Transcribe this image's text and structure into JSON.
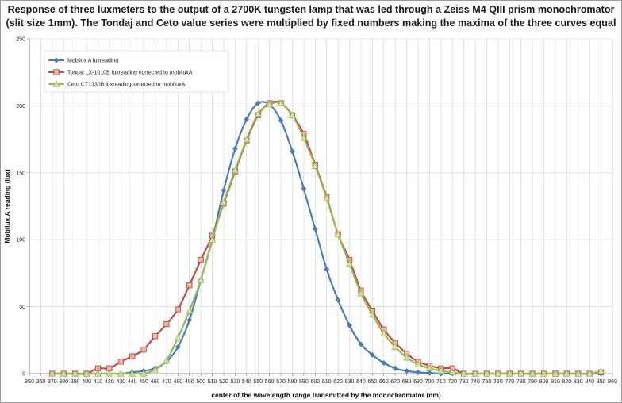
{
  "chart_data": {
    "type": "line",
    "title": "Response of three luxmeters to the output of a 2700K tungsten lamp that was led through a Zeiss M4 QIII prism monochromator (slit size 1mm). The Tondaj and Ceto value series were multiplied by fixed numbers making the maxima of the three curves equal",
    "xlabel": "center of the wavelength range transmitted by the monochromator (nm)",
    "ylabel": "Mobilux A reading (lux)",
    "xlim": [
      350,
      860
    ],
    "ylim": [
      0,
      250
    ],
    "x_ticks": [
      350,
      360,
      370,
      380,
      390,
      400,
      410,
      420,
      430,
      440,
      450,
      460,
      470,
      480,
      490,
      500,
      510,
      520,
      530,
      540,
      550,
      560,
      570,
      580,
      590,
      600,
      610,
      620,
      630,
      640,
      650,
      660,
      670,
      680,
      690,
      700,
      710,
      720,
      730,
      740,
      750,
      760,
      770,
      780,
      790,
      800,
      810,
      820,
      830,
      840,
      850,
      860
    ],
    "y_ticks": [
      0,
      50,
      100,
      150,
      200,
      250
    ],
    "grid": true,
    "legend_position": "top-left",
    "series": [
      {
        "name": "Mobilux A luxreading",
        "color": "#4a7ebb",
        "marker": "diamond",
        "x": [
          370,
          380,
          390,
          400,
          410,
          420,
          430,
          440,
          450,
          460,
          470,
          480,
          490,
          500,
          510,
          520,
          530,
          540,
          550,
          560,
          570,
          580,
          590,
          600,
          610,
          620,
          630,
          640,
          650,
          660,
          670,
          680,
          690,
          700,
          710,
          720,
          730,
          740,
          750,
          760,
          770,
          780,
          790,
          800,
          810,
          820,
          830,
          840,
          850
        ],
        "values": [
          0,
          0,
          0,
          0,
          0,
          0,
          0,
          1,
          2,
          4,
          9,
          20,
          40,
          70,
          100,
          137,
          168,
          190,
          202,
          201,
          189,
          166,
          138,
          108,
          78,
          55,
          36,
          22,
          14,
          8,
          4,
          2,
          1,
          0.5,
          0,
          0,
          0,
          0,
          0,
          0,
          0,
          0,
          0,
          0,
          0,
          0,
          0,
          0,
          0
        ]
      },
      {
        "name": "Tondaj LX-1010B luxreading corrected to mobiluxA",
        "color": "#be4b48",
        "marker": "square",
        "x": [
          370,
          380,
          390,
          400,
          410,
          420,
          430,
          440,
          450,
          460,
          470,
          480,
          490,
          500,
          510,
          520,
          530,
          540,
          550,
          560,
          570,
          580,
          590,
          600,
          610,
          620,
          630,
          640,
          650,
          660,
          670,
          680,
          690,
          700,
          710,
          720,
          730,
          740,
          750,
          760,
          770,
          780,
          790,
          800,
          810,
          820,
          830,
          840,
          850
        ],
        "values": [
          0,
          0,
          0,
          0,
          4,
          4,
          9,
          13,
          18,
          28,
          37,
          48,
          66,
          85,
          103,
          127,
          151,
          174,
          193,
          202,
          202,
          193,
          179,
          156,
          132,
          104,
          85,
          62,
          47,
          33,
          23,
          15,
          9,
          6,
          4,
          4,
          0,
          0,
          0,
          0,
          0,
          0,
          0,
          0,
          0,
          0,
          0,
          0,
          1
        ]
      },
      {
        "name": "Ceto CT1330B luxreadingcorrected to mobiluxA",
        "color": "#98b954",
        "marker": "triangle",
        "x": [
          370,
          380,
          390,
          400,
          410,
          420,
          430,
          440,
          450,
          460,
          470,
          480,
          490,
          500,
          510,
          520,
          530,
          540,
          550,
          560,
          570,
          580,
          590,
          600,
          610,
          620,
          630,
          640,
          650,
          660,
          670,
          680,
          690,
          700,
          710,
          720,
          730,
          740,
          750,
          760,
          770,
          780,
          790,
          800,
          810,
          820,
          830,
          840,
          850
        ],
        "values": [
          0,
          0,
          0,
          0,
          0,
          0,
          0,
          0,
          0,
          3,
          10,
          27,
          47,
          70,
          100,
          128,
          152,
          175,
          194,
          201,
          202,
          193,
          176,
          155,
          131,
          104,
          82,
          60,
          44,
          30,
          20,
          12,
          7,
          4,
          2,
          1,
          0,
          0,
          0,
          0,
          0,
          0,
          0,
          0,
          0,
          0,
          0,
          0,
          2
        ]
      }
    ]
  }
}
